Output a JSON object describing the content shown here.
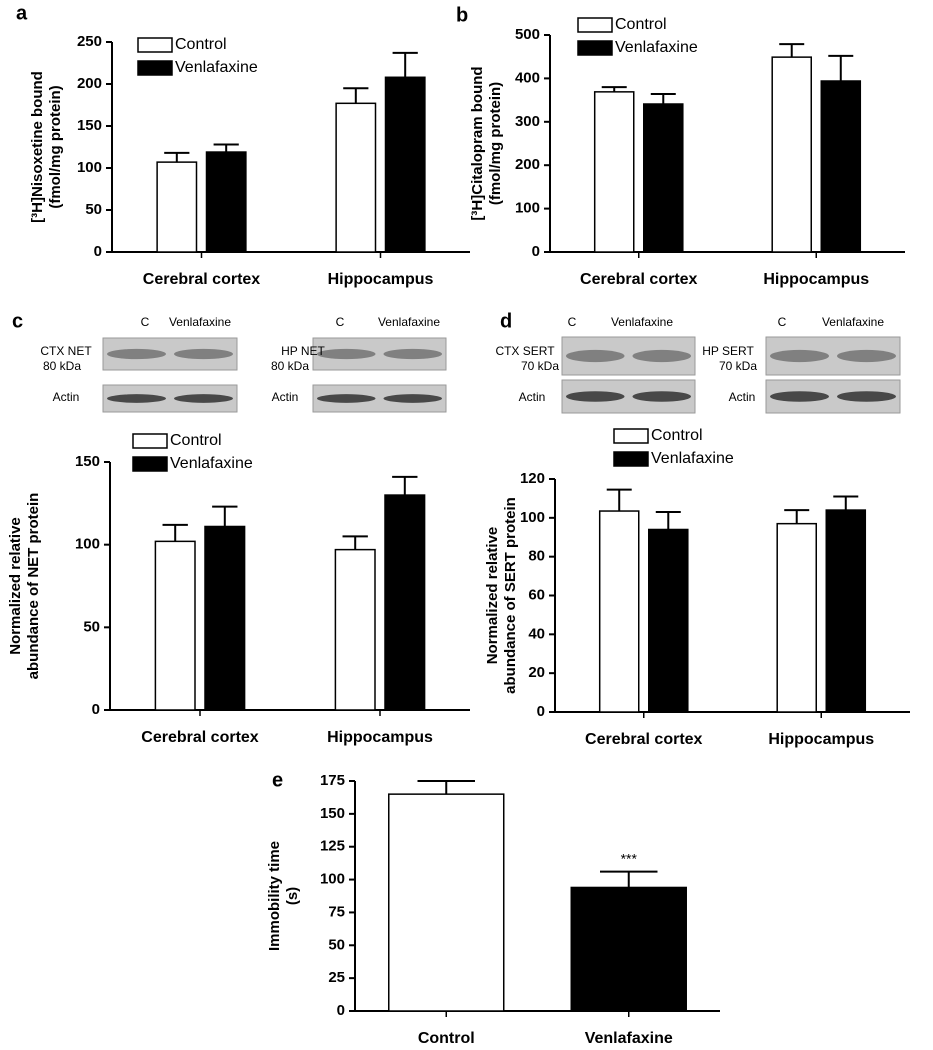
{
  "chart_data": [
    {
      "type": "bar",
      "panel": "a",
      "ylabel": [
        "[³H]Nisoxetine bound",
        "(fmol/mg protein)"
      ],
      "categories": [
        "Cerebral cortex",
        "Hippocampus"
      ],
      "series": [
        {
          "name": "Control",
          "color": "#ffffff",
          "values": [
            107,
            177
          ],
          "errors": [
            11,
            18
          ]
        },
        {
          "name": "Venlafaxine",
          "color": "#000000",
          "values": [
            119,
            208
          ],
          "errors": [
            9,
            29
          ]
        }
      ],
      "ylim": [
        0,
        250
      ],
      "yticks": [
        0,
        50,
        100,
        150,
        200,
        250
      ]
    },
    {
      "type": "bar",
      "panel": "b",
      "ylabel": [
        "[³H]Citalopram bound",
        "(fmol/mg protein)"
      ],
      "categories": [
        "Cerebral cortex",
        "Hippocampus"
      ],
      "series": [
        {
          "name": "Control",
          "color": "#ffffff",
          "values": [
            369,
            449
          ],
          "errors": [
            11,
            30
          ]
        },
        {
          "name": "Venlafaxine",
          "color": "#000000",
          "values": [
            341,
            394
          ],
          "errors": [
            23,
            58
          ]
        }
      ],
      "ylim": [
        0,
        500
      ],
      "yticks": [
        0,
        100,
        200,
        300,
        400,
        500
      ]
    },
    {
      "type": "bar",
      "panel": "c",
      "ylabel": [
        "Normalized relative",
        "abundance of NET protein"
      ],
      "categories": [
        "Cerebral cortex",
        "Hippocampus"
      ],
      "series": [
        {
          "name": "Control",
          "color": "#ffffff",
          "values": [
            102,
            97
          ],
          "errors": [
            10,
            8
          ]
        },
        {
          "name": "Venlafaxine",
          "color": "#000000",
          "values": [
            111,
            130
          ],
          "errors": [
            12,
            11
          ]
        }
      ],
      "ylim": [
        0,
        150
      ],
      "yticks": [
        0,
        50,
        100,
        150
      ]
    },
    {
      "type": "bar",
      "panel": "d",
      "ylabel": [
        "Normalized relative",
        "abundance of SERT protein"
      ],
      "categories": [
        "Cerebral cortex",
        "Hippocampus"
      ],
      "series": [
        {
          "name": "Control",
          "color": "#ffffff",
          "values": [
            103.5,
            97
          ],
          "errors": [
            11,
            7
          ]
        },
        {
          "name": "Venlafaxine",
          "color": "#000000",
          "values": [
            94,
            104
          ],
          "errors": [
            9,
            7
          ]
        }
      ],
      "ylim": [
        0,
        120
      ],
      "yticks": [
        0,
        20,
        40,
        60,
        80,
        100,
        120
      ]
    },
    {
      "type": "bar",
      "panel": "e",
      "ylabel": [
        "Immobility time",
        "(s)"
      ],
      "categories": [
        "Control",
        "Venlafaxine"
      ],
      "values": [
        165,
        94
      ],
      "errors": [
        10,
        12
      ],
      "colors": [
        "#ffffff",
        "#000000"
      ],
      "annotations": [
        {
          "text": "***",
          "x": "Venlafaxine"
        }
      ],
      "ylim": [
        0,
        175
      ],
      "yticks": [
        0,
        25,
        50,
        75,
        100,
        125,
        150,
        175
      ]
    }
  ],
  "blots": [
    {
      "lanes": [
        "C",
        "Venlafaxine"
      ],
      "protein": [
        "CTX NET",
        "80 kDa"
      ],
      "loading": "Actin"
    },
    {
      "lanes": [
        "C",
        "Venlafaxine"
      ],
      "protein": [
        "HP NET",
        "80 kDa"
      ],
      "loading": "Actin"
    },
    {
      "lanes": [
        "C",
        "Venlafaxine"
      ],
      "protein": [
        "CTX SERT",
        "70 kDa"
      ],
      "loading": "Actin"
    },
    {
      "lanes": [
        "C",
        "Venlafaxine"
      ],
      "protein": [
        "HP SERT",
        "70 kDa"
      ],
      "loading": "Actin"
    }
  ]
}
